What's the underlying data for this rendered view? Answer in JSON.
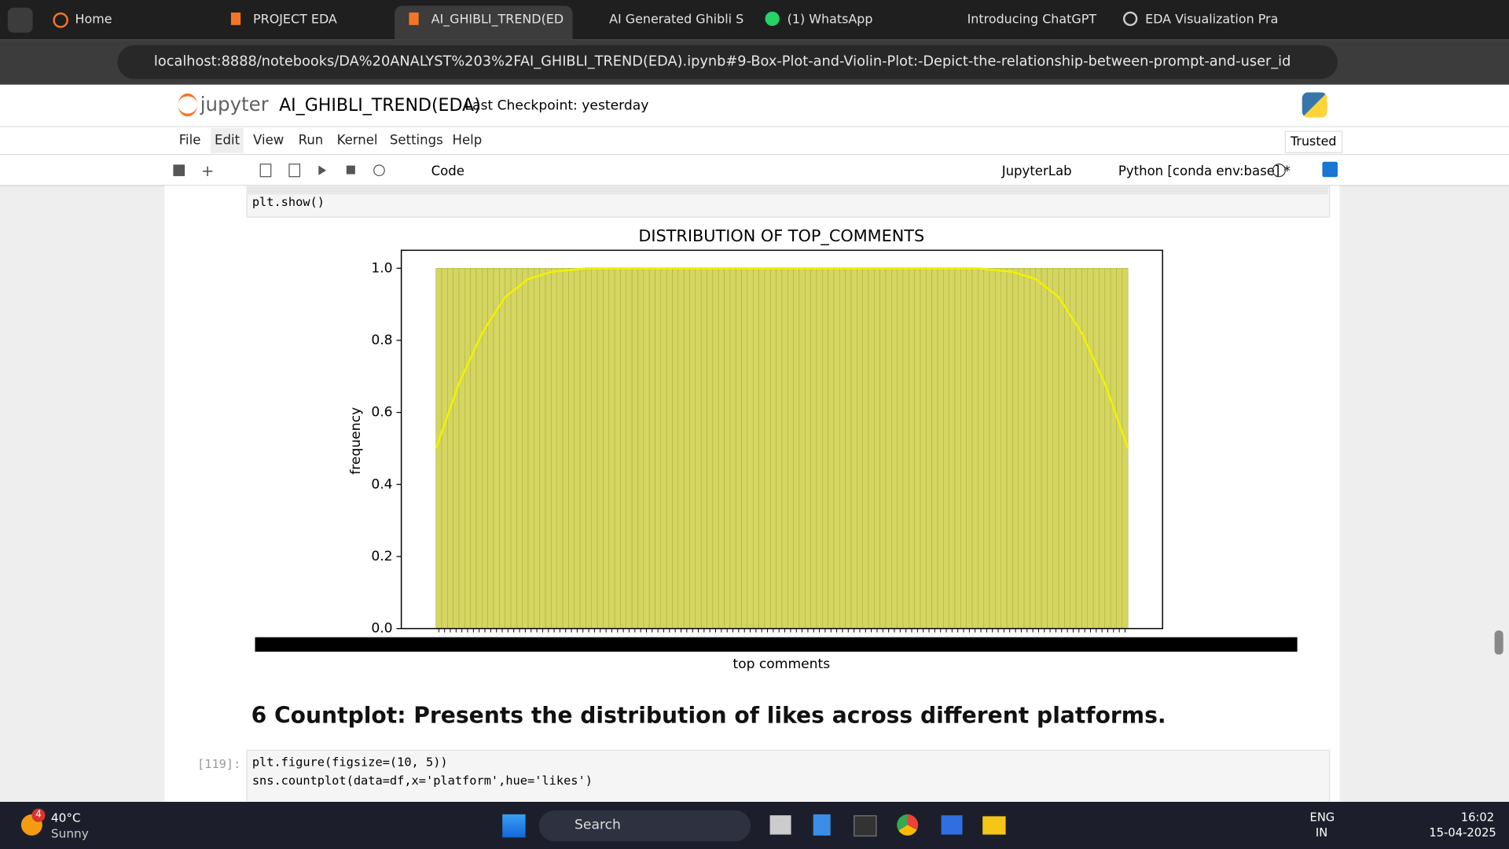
{
  "browser": {
    "tabs": [
      "Home",
      "PROJECT EDA",
      "AI_GHIBLI_TREND(ED",
      "AI Generated Ghibli S",
      "(1) WhatsApp",
      "Introducing ChatGPT",
      "EDA Visualization Pra"
    ],
    "url": "localhost:8888/notebooks/DA%20ANALYST%203%2FAI_GHIBLI_TREND(EDA).ipynb#9-Box-Plot-and-Violin-Plot:-Depict-the-relationship-between-prompt-and-user_id"
  },
  "jupyter": {
    "logo": "jupyter",
    "title": "AI_GHIBLI_TREND(EDA)",
    "checkpoint": "Last Checkpoint: yesterday",
    "menu": [
      "File",
      "Edit",
      "View",
      "Run",
      "Kernel",
      "Settings",
      "Help"
    ],
    "trusted": "Trusted",
    "cell_type": "Code",
    "jupyterlab": "JupyterLab",
    "kernel": "Python [conda env:base] *"
  },
  "cells": {
    "code1": "plt.show()",
    "heading": "6 Countplot: Presents the distribution of likes across different platforms.",
    "prompt": "[119]:",
    "code2": [
      "plt.figure(figsize=(10, 5))",
      "sns.countplot(data=df,x='platform',hue='likes')"
    ]
  },
  "chart_data": {
    "type": "histogram",
    "title": "DISTRIBUTION OF TOP_COMMENTS",
    "xlabel": "top comments",
    "ylabel": "frequency",
    "color": "#d5d562",
    "edgecolor": "#a8a83a",
    "bins": [
      0,
      1,
      2,
      3,
      4,
      5,
      6,
      7,
      8,
      9,
      10,
      11,
      12,
      13,
      14,
      15,
      16,
      17,
      18,
      19,
      20,
      21,
      22,
      23,
      24,
      25,
      26,
      27,
      28,
      29,
      30,
      31,
      32,
      33,
      34,
      35,
      36,
      37,
      38,
      39,
      40,
      41,
      42,
      43,
      44,
      45,
      46,
      47,
      48,
      49,
      50,
      51,
      52,
      53,
      54,
      55,
      56,
      57,
      58,
      59,
      60,
      61,
      62,
      63,
      64,
      65,
      66,
      67,
      68,
      69,
      70,
      71,
      72,
      73,
      74,
      75,
      76,
      77,
      78,
      79,
      80,
      81,
      82,
      83,
      84,
      85,
      86,
      87,
      88,
      89,
      90,
      91,
      92,
      93,
      94,
      95,
      96,
      97,
      98,
      99,
      100,
      101,
      102,
      103,
      104,
      105,
      106,
      107,
      108,
      109,
      110,
      111,
      112,
      113,
      114,
      115,
      116,
      117,
      118,
      119,
      120
    ],
    "values": [
      1,
      1,
      1,
      1,
      1,
      1,
      1,
      1,
      1,
      1,
      1,
      1,
      1,
      1,
      1,
      1,
      1,
      1,
      1,
      1,
      1,
      1,
      1,
      1,
      1,
      1,
      1,
      1,
      1,
      1,
      1,
      1,
      1,
      1,
      1,
      1,
      1,
      1,
      1,
      1,
      1,
      1,
      1,
      1,
      1,
      1,
      1,
      1,
      1,
      1,
      1,
      1,
      1,
      1,
      1,
      1,
      1,
      1,
      1,
      1,
      1,
      1,
      1,
      1,
      1,
      1,
      1,
      1,
      1,
      1,
      1,
      1,
      1,
      1,
      1,
      1,
      1,
      1,
      1,
      1,
      1,
      1,
      1,
      1,
      1,
      1,
      1,
      1,
      1,
      1,
      1,
      1,
      1,
      1,
      1,
      1,
      1,
      1,
      1,
      1,
      1,
      1,
      1,
      1,
      1,
      1,
      1,
      1,
      1,
      1,
      1,
      1,
      1,
      1,
      1,
      1,
      1,
      1,
      1,
      1
    ],
    "kde": {
      "color": "#f2f200",
      "x": [
        0,
        4,
        8,
        12,
        16,
        20,
        26,
        60,
        94,
        100,
        104,
        108,
        112,
        116,
        120
      ],
      "values": [
        0.5,
        0.68,
        0.82,
        0.92,
        0.97,
        0.99,
        1.0,
        1.0,
        1.0,
        0.99,
        0.97,
        0.92,
        0.82,
        0.68,
        0.5
      ]
    },
    "xlim": [
      -6,
      126
    ],
    "ylim": [
      0,
      1.05
    ],
    "yticks": [
      {
        "value": 0,
        "label": "0.0"
      },
      {
        "value": 0.2,
        "label": "0.2"
      },
      {
        "value": 0.4,
        "label": "0.4"
      },
      {
        "value": 0.6,
        "label": "0.6"
      },
      {
        "value": 0.8,
        "label": "0.8"
      },
      {
        "value": 1.0,
        "label": "1.0"
      }
    ]
  },
  "taskbar": {
    "badge": "4",
    "temp": "40°C",
    "weather": "Sunny",
    "search": "Search",
    "lang": [
      "ENG",
      "IN"
    ],
    "time": "16:02",
    "date": "15-04-2025"
  }
}
